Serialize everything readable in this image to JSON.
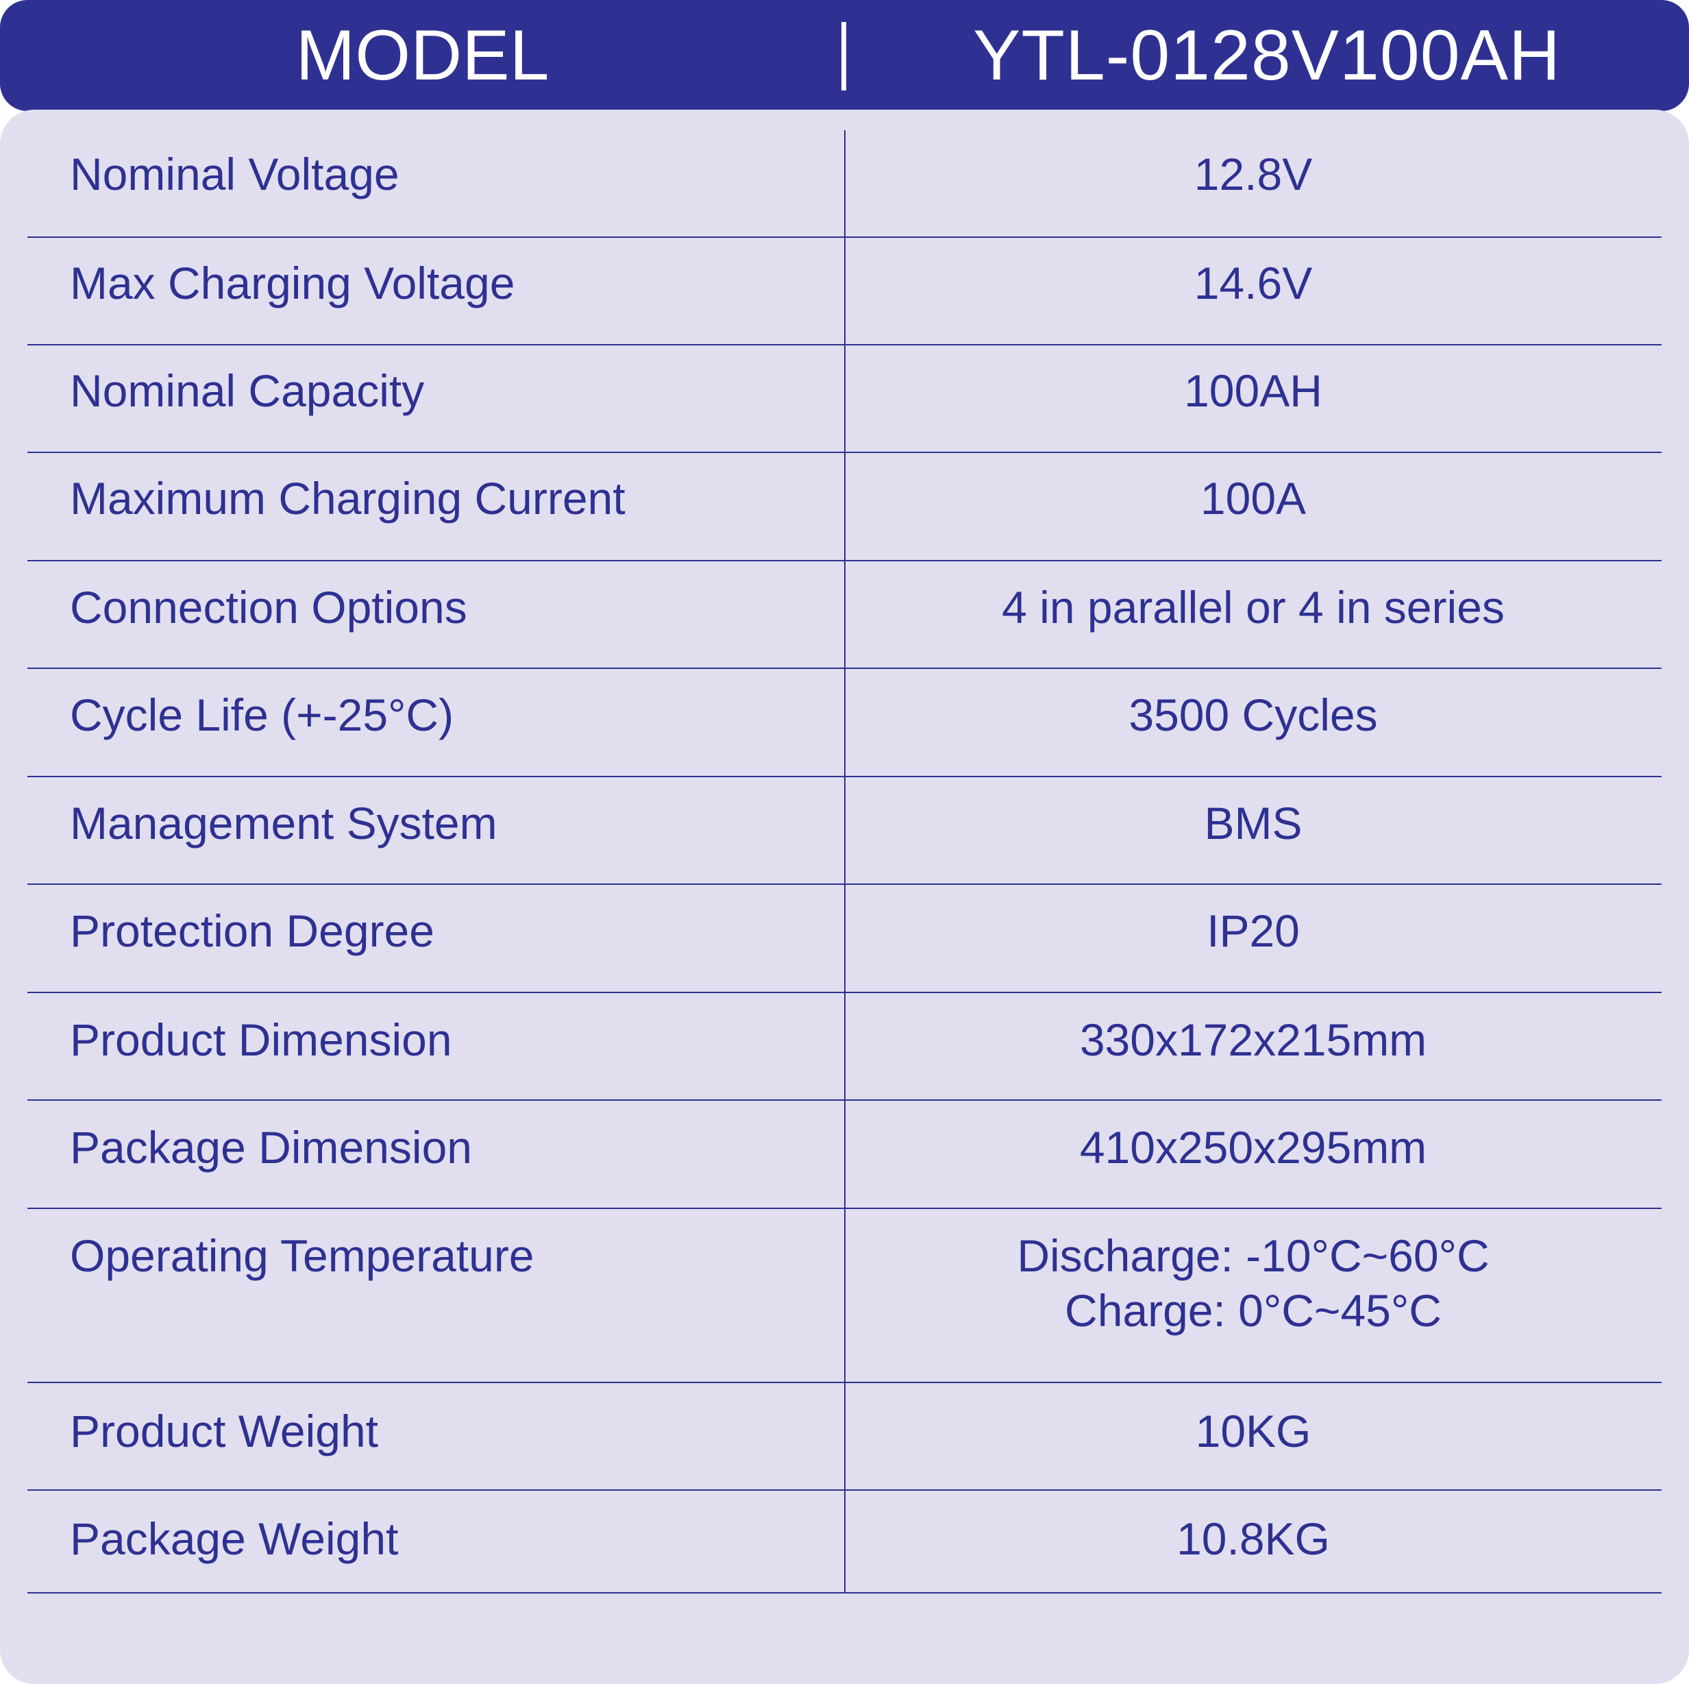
{
  "header": {
    "model_label": "MODEL",
    "model_value": "YTL-0128V100AH"
  },
  "specs": [
    {
      "label": "Nominal Voltage",
      "value": "12.8V"
    },
    {
      "label": "Max Charging Voltage",
      "value": "14.6V"
    },
    {
      "label": "Nominal Capacity",
      "value": "100AH"
    },
    {
      "label": "Maximum Charging Current",
      "value": "100A"
    },
    {
      "label": "Connection Options",
      "value": "4 in parallel or 4 in series"
    },
    {
      "label": "Cycle Life (+-25°C)",
      "value": "3500 Cycles"
    },
    {
      "label": "Management System",
      "value": "BMS"
    },
    {
      "label": "Protection Degree",
      "value": "IP20"
    },
    {
      "label": "Product Dimension",
      "value": "330x172x215mm"
    },
    {
      "label": "Package Dimension",
      "value": "410x250x295mm"
    },
    {
      "label": "Operating Temperature",
      "value_lines": [
        "Discharge: -10°C~60°C",
        "Charge: 0°C~45°C"
      ]
    },
    {
      "label": "Product Weight",
      "value": "10KG"
    },
    {
      "label": "Package Weight",
      "value": "10.8KG"
    }
  ]
}
